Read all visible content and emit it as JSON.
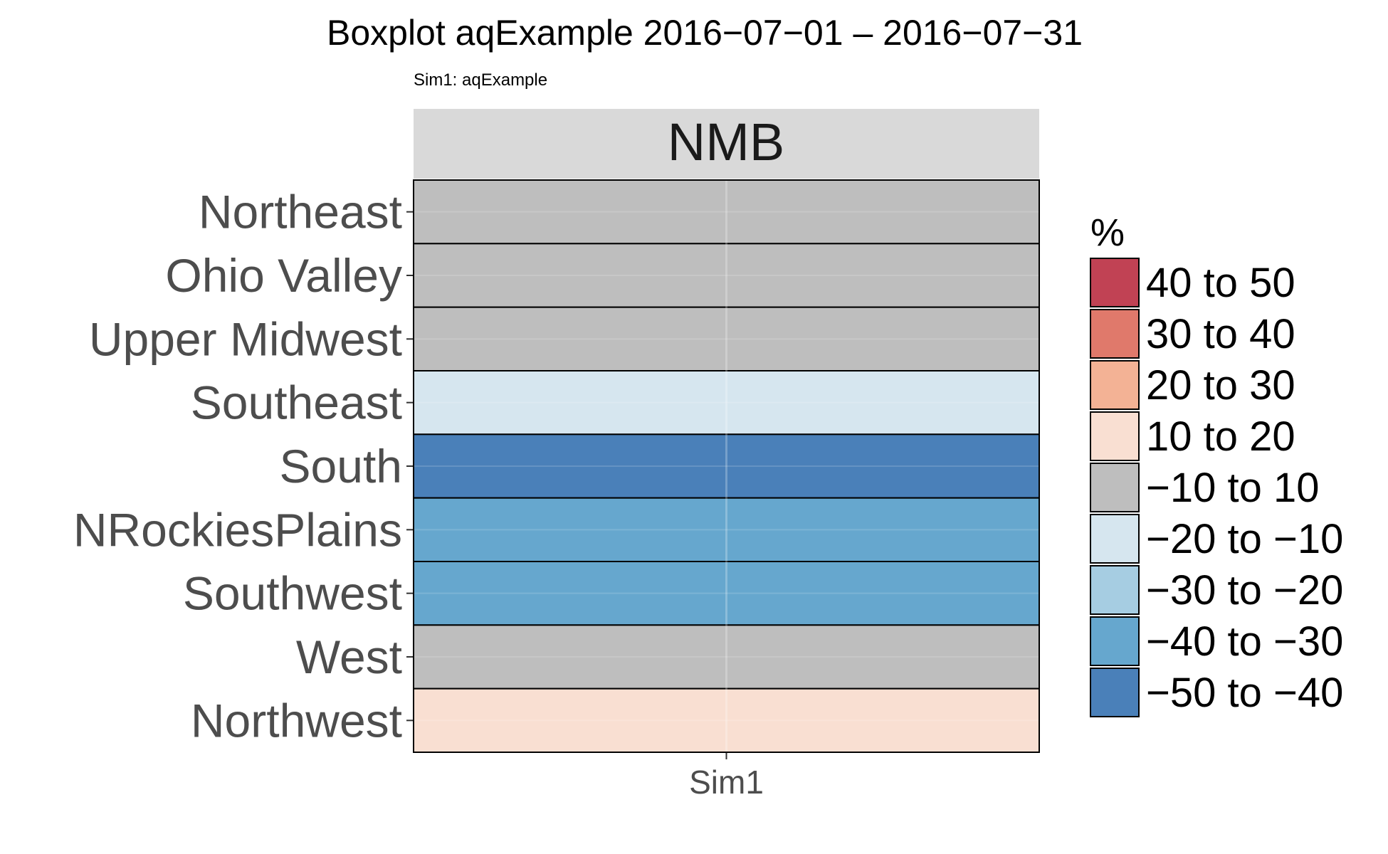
{
  "chart_data": {
    "type": "heatmap",
    "title": "Boxplot aqExample 2016−07−01 – 2016−07−31",
    "subtitle": "Sim1: aqExample",
    "facet_label": "NMB",
    "x_categories": [
      "Sim1"
    ],
    "y_categories": [
      "Northeast",
      "Ohio Valley",
      "Upper Midwest",
      "Southeast",
      "South",
      "NRockiesPlains",
      "Southwest",
      "West",
      "Northwest"
    ],
    "cells": [
      {
        "region": "Northeast",
        "sim": "Sim1",
        "bin": "−10 to 10"
      },
      {
        "region": "Ohio Valley",
        "sim": "Sim1",
        "bin": "−10 to 10"
      },
      {
        "region": "Upper Midwest",
        "sim": "Sim1",
        "bin": "−10 to 10"
      },
      {
        "region": "Southeast",
        "sim": "Sim1",
        "bin": "−20 to −10"
      },
      {
        "region": "South",
        "sim": "Sim1",
        "bin": "−50 to −40"
      },
      {
        "region": "NRockiesPlains",
        "sim": "Sim1",
        "bin": "−40 to −30"
      },
      {
        "region": "Southwest",
        "sim": "Sim1",
        "bin": "−40 to −30"
      },
      {
        "region": "West",
        "sim": "Sim1",
        "bin": "−10 to 10"
      },
      {
        "region": "Northwest",
        "sim": "Sim1",
        "bin": "10 to 20"
      }
    ],
    "legend": {
      "title": "%",
      "placement": "right",
      "entries": [
        {
          "label": "40 to 50",
          "color": "#c14254"
        },
        {
          "label": "30 to 40",
          "color": "#e0796b"
        },
        {
          "label": "20 to 30",
          "color": "#f3b295"
        },
        {
          "label": "10 to 20",
          "color": "#f9dfd2"
        },
        {
          "label": "−10 to 10",
          "color": "#bebebe"
        },
        {
          "label": "−20 to −10",
          "color": "#d6e6ef"
        },
        {
          "label": "−30 to −20",
          "color": "#a6cde2"
        },
        {
          "label": "−40 to −30",
          "color": "#66a7ce"
        },
        {
          "label": "−50 to −40",
          "color": "#4a80b9"
        }
      ]
    },
    "grid": true
  }
}
